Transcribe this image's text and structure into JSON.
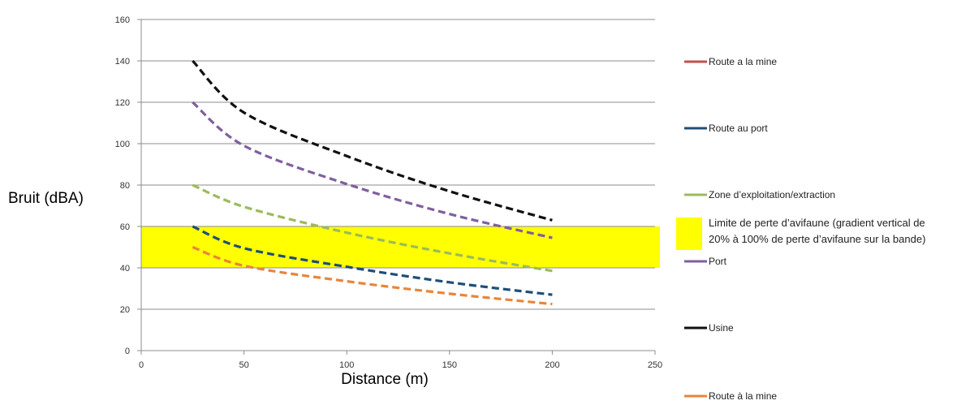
{
  "chart_data": {
    "type": "line",
    "xlabel": "Distance (m)",
    "ylabel": "Bruit (dBA)",
    "xlim": [
      0,
      250
    ],
    "ylim": [
      0,
      160
    ],
    "x_ticks": [
      0,
      50,
      100,
      150,
      200,
      250
    ],
    "y_ticks": [
      0,
      20,
      40,
      60,
      80,
      100,
      120,
      140,
      160
    ],
    "grid": "horizontal",
    "legend_position": "right",
    "band": {
      "name": "Limite de perte d’avifaune (gradient vertical de 20% à 100% de perte d’avifaune sur la bande)",
      "name_lines": [
        "Limite de perte d’avifaune (gradient vertical de",
        "20% à 100% de perte d’avifaune sur la bande)"
      ],
      "y_range": [
        40,
        60
      ],
      "color": "#ffff00"
    },
    "x": [
      25,
      50,
      100,
      150,
      200
    ],
    "series": [
      {
        "name": "Route a la mine",
        "color": "#c0504d",
        "style": "solid",
        "values": [
          null,
          null,
          null,
          null,
          null
        ]
      },
      {
        "name": "Route au port",
        "color": "#1f4e79",
        "style": "dashed",
        "values": [
          60,
          49.5,
          40.5,
          33,
          27
        ]
      },
      {
        "name": "Zone d’exploitation/extraction",
        "color": "#9bbb59",
        "style": "dashed",
        "values": [
          80,
          69.5,
          57,
          47,
          38.5
        ]
      },
      {
        "name": "Port",
        "color": "#7f5f9f",
        "style": "dashed",
        "values": [
          120,
          99,
          80.5,
          66,
          54.5
        ]
      },
      {
        "name": "Usine",
        "color": "#111111",
        "style": "dashed",
        "values": [
          140,
          115,
          94,
          77,
          63
        ]
      },
      {
        "name": "Route à la mine",
        "color": "#e8853a",
        "style": "dashed",
        "values": [
          50,
          41,
          33.5,
          27.5,
          22.5
        ]
      }
    ],
    "legend_order": [
      "Route a la mine",
      "Route au port",
      "Zone d’exploitation/extraction",
      "band",
      "Port",
      "Usine",
      "Route à la mine"
    ]
  }
}
